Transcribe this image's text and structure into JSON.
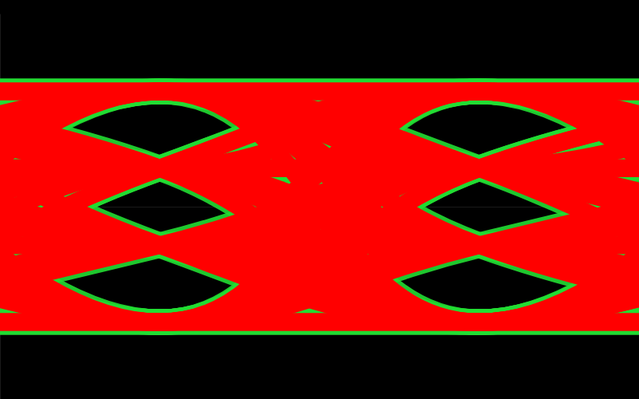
{
  "chart_data": {
    "type": "eye",
    "xlim": [
      0,
      2
    ],
    "ylim": [
      -5,
      5
    ],
    "tick_labels": false,
    "grid": false,
    "color": "#ff0000",
    "symbols": [
      3,
      1,
      -1,
      -3,
      -3,
      1,
      3,
      -1,
      1,
      1,
      -3,
      3,
      3,
      -1,
      -1,
      3,
      1,
      -3,
      -1,
      1,
      -1,
      3,
      -3,
      1,
      -3,
      -1,
      -3,
      3,
      -1,
      -3,
      1,
      3,
      3,
      1,
      -1,
      -1,
      1,
      -3,
      -3,
      3,
      1,
      1,
      3,
      -1
    ]
  }
}
